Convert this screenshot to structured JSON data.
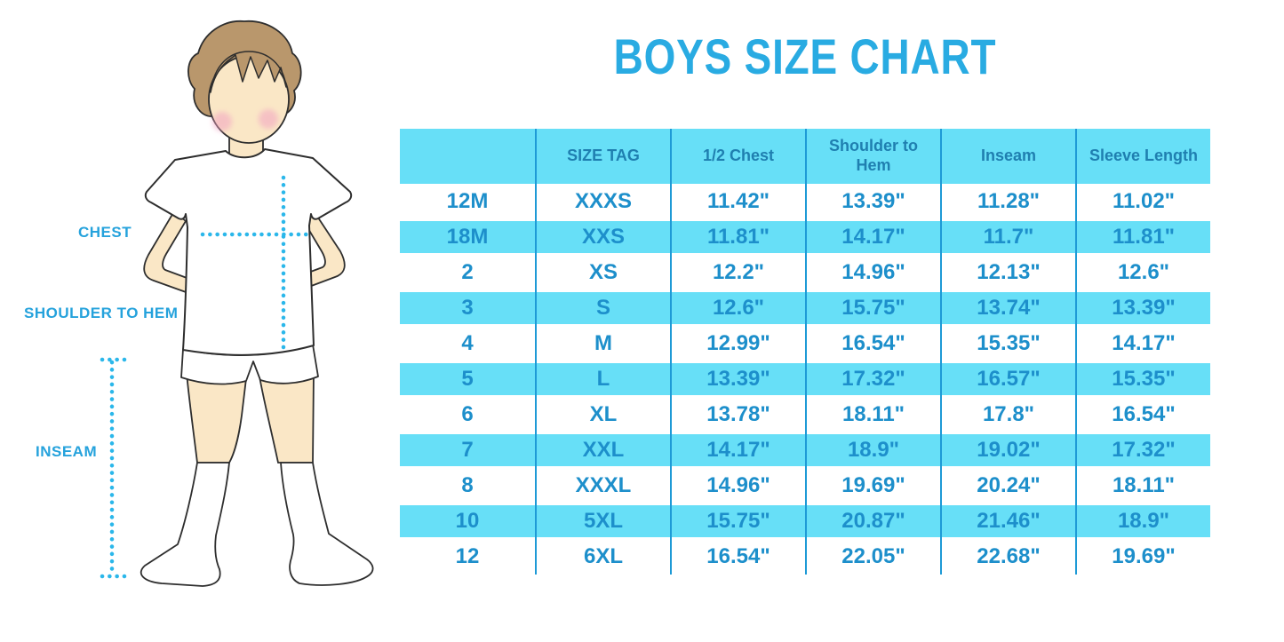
{
  "title": "BOYS SIZE CHART",
  "figure": {
    "labels": {
      "chest": "CHEST",
      "shoulder_to_hem": "SHOULDER TO HEM",
      "inseam": "INSEAM"
    }
  },
  "chart_data": {
    "type": "table",
    "title": "BOYS SIZE CHART",
    "columns": [
      "",
      "SIZE TAG",
      "1/2 Chest",
      "Shoulder to Hem",
      "Inseam",
      "Sleeve Length"
    ],
    "rows": [
      [
        "12M",
        "XXXS",
        "11.42\"",
        "13.39\"",
        "11.28\"",
        "11.02\""
      ],
      [
        "18M",
        "XXS",
        "11.81\"",
        "14.17\"",
        "11.7\"",
        "11.81\""
      ],
      [
        "2",
        "XS",
        "12.2\"",
        "14.96\"",
        "12.13\"",
        "12.6\""
      ],
      [
        "3",
        "S",
        "12.6\"",
        "15.75\"",
        "13.74\"",
        "13.39\""
      ],
      [
        "4",
        "M",
        "12.99\"",
        "16.54\"",
        "15.35\"",
        "14.17\""
      ],
      [
        "5",
        "L",
        "13.39\"",
        "17.32\"",
        "16.57\"",
        "15.35\""
      ],
      [
        "6",
        "XL",
        "13.78\"",
        "18.11\"",
        "17.8\"",
        "16.54\""
      ],
      [
        "7",
        "XXL",
        "14.17\"",
        "18.9\"",
        "19.02\"",
        "17.32\""
      ],
      [
        "8",
        "XXXL",
        "14.96\"",
        "19.69\"",
        "20.24\"",
        "18.11\""
      ],
      [
        "10",
        "5XL",
        "15.75\"",
        "20.87\"",
        "21.46\"",
        "18.9\""
      ],
      [
        "12",
        "6XL",
        "16.54\"",
        "22.05\"",
        "22.68\"",
        "19.69\""
      ]
    ],
    "units": "inches",
    "row_striping": "alternating white and cyan, starting white",
    "grid": "vertical column dividers only, no outer border"
  },
  "colors": {
    "accent": "#29ABE2",
    "label_text": "#25A2DC",
    "row_cyan": "#67DFF7",
    "header_text": "#1F7FB0",
    "cell_text": "#1D8FCB",
    "divider": "#1E9AD6",
    "dot_line": "#2BB7EA",
    "skin": "#FAE7C6",
    "hair": "#B9976C",
    "blush": "#F2A3C2",
    "outline": "#2E2E2E"
  }
}
